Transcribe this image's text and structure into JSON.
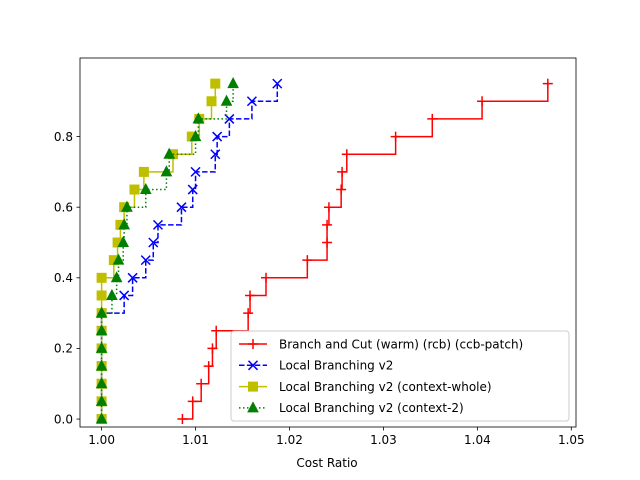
{
  "chart_data": {
    "type": "line",
    "title": "",
    "xlabel": "Cost Ratio",
    "ylabel": "",
    "xlim": [
      0.9977,
      1.0505
    ],
    "ylim": [
      -0.0225,
      1.0225
    ],
    "x_ticks": [
      1.0,
      1.01,
      1.02,
      1.03,
      1.04,
      1.05
    ],
    "x_tick_labels": [
      "1.00",
      "1.01",
      "1.02",
      "1.03",
      "1.04",
      "1.05"
    ],
    "y_ticks": [
      0.0,
      0.2,
      0.4,
      0.6,
      0.8
    ],
    "y_tick_labels": [
      "0.0",
      "0.2",
      "0.4",
      "0.6",
      "0.8"
    ],
    "legend_position": "lower-right",
    "grid": false,
    "series": [
      {
        "name": "Branch and Cut (warm) (rcb) (ccb-patch)",
        "color": "#ff0000",
        "marker": "plus",
        "linestyle": "solid",
        "points": [
          [
            1.0086,
            0.0
          ],
          [
            1.0097,
            0.05
          ],
          [
            1.0106,
            0.1
          ],
          [
            1.0114,
            0.15
          ],
          [
            1.0118,
            0.2
          ],
          [
            1.0122,
            0.25
          ],
          [
            1.0156,
            0.3
          ],
          [
            1.0158,
            0.35
          ],
          [
            1.0175,
            0.4
          ],
          [
            1.0219,
            0.45
          ],
          [
            1.024,
            0.5
          ],
          [
            1.024,
            0.55
          ],
          [
            1.0242,
            0.6
          ],
          [
            1.0255,
            0.65
          ],
          [
            1.0256,
            0.7
          ],
          [
            1.0261,
            0.75
          ],
          [
            1.0313,
            0.8
          ],
          [
            1.0352,
            0.85
          ],
          [
            1.0405,
            0.9
          ],
          [
            1.0475,
            0.95
          ]
        ]
      },
      {
        "name": "Local Branching v2",
        "color": "#0000ff",
        "marker": "x",
        "linestyle": "dashed",
        "points": [
          [
            1.0,
            0.0
          ],
          [
            1.0,
            0.05
          ],
          [
            1.0,
            0.1
          ],
          [
            1.0,
            0.15
          ],
          [
            1.0,
            0.2
          ],
          [
            1.0,
            0.25
          ],
          [
            1.0,
            0.3
          ],
          [
            1.0024,
            0.35
          ],
          [
            1.0033,
            0.4
          ],
          [
            1.0047,
            0.45
          ],
          [
            1.0055,
            0.5
          ],
          [
            1.006,
            0.55
          ],
          [
            1.0085,
            0.6
          ],
          [
            1.0097,
            0.65
          ],
          [
            1.01,
            0.7
          ],
          [
            1.0121,
            0.75
          ],
          [
            1.0123,
            0.8
          ],
          [
            1.0136,
            0.85
          ],
          [
            1.016,
            0.9
          ],
          [
            1.0187,
            0.95
          ]
        ]
      },
      {
        "name": "Local Branching v2 (context-whole)",
        "color": "#bfbf00",
        "marker": "square",
        "linestyle": "solid",
        "points": [
          [
            1.0,
            0.0
          ],
          [
            1.0,
            0.05
          ],
          [
            1.0,
            0.1
          ],
          [
            1.0,
            0.15
          ],
          [
            1.0,
            0.2
          ],
          [
            1.0,
            0.25
          ],
          [
            1.0,
            0.3
          ],
          [
            1.0,
            0.35
          ],
          [
            1.0,
            0.4
          ],
          [
            1.0013,
            0.45
          ],
          [
            1.0017,
            0.5
          ],
          [
            1.002,
            0.55
          ],
          [
            1.0024,
            0.6
          ],
          [
            1.0035,
            0.65
          ],
          [
            1.0045,
            0.7
          ],
          [
            1.0076,
            0.75
          ],
          [
            1.0096,
            0.8
          ],
          [
            1.0104,
            0.85
          ],
          [
            1.0117,
            0.9
          ],
          [
            1.0121,
            0.95
          ]
        ]
      },
      {
        "name": "Local Branching v2 (context-2)",
        "color": "#008000",
        "marker": "triangle",
        "linestyle": "dotted",
        "points": [
          [
            1.0,
            0.0
          ],
          [
            1.0,
            0.05
          ],
          [
            1.0,
            0.1
          ],
          [
            1.0,
            0.15
          ],
          [
            1.0,
            0.2
          ],
          [
            1.0,
            0.25
          ],
          [
            1.0,
            0.3
          ],
          [
            1.0011,
            0.35
          ],
          [
            1.0016,
            0.4
          ],
          [
            1.0018,
            0.45
          ],
          [
            1.0023,
            0.5
          ],
          [
            1.0024,
            0.55
          ],
          [
            1.0027,
            0.6
          ],
          [
            1.0047,
            0.65
          ],
          [
            1.0069,
            0.7
          ],
          [
            1.0072,
            0.75
          ],
          [
            1.01,
            0.8
          ],
          [
            1.0103,
            0.85
          ],
          [
            1.0133,
            0.9
          ],
          [
            1.014,
            0.95
          ]
        ]
      }
    ]
  }
}
